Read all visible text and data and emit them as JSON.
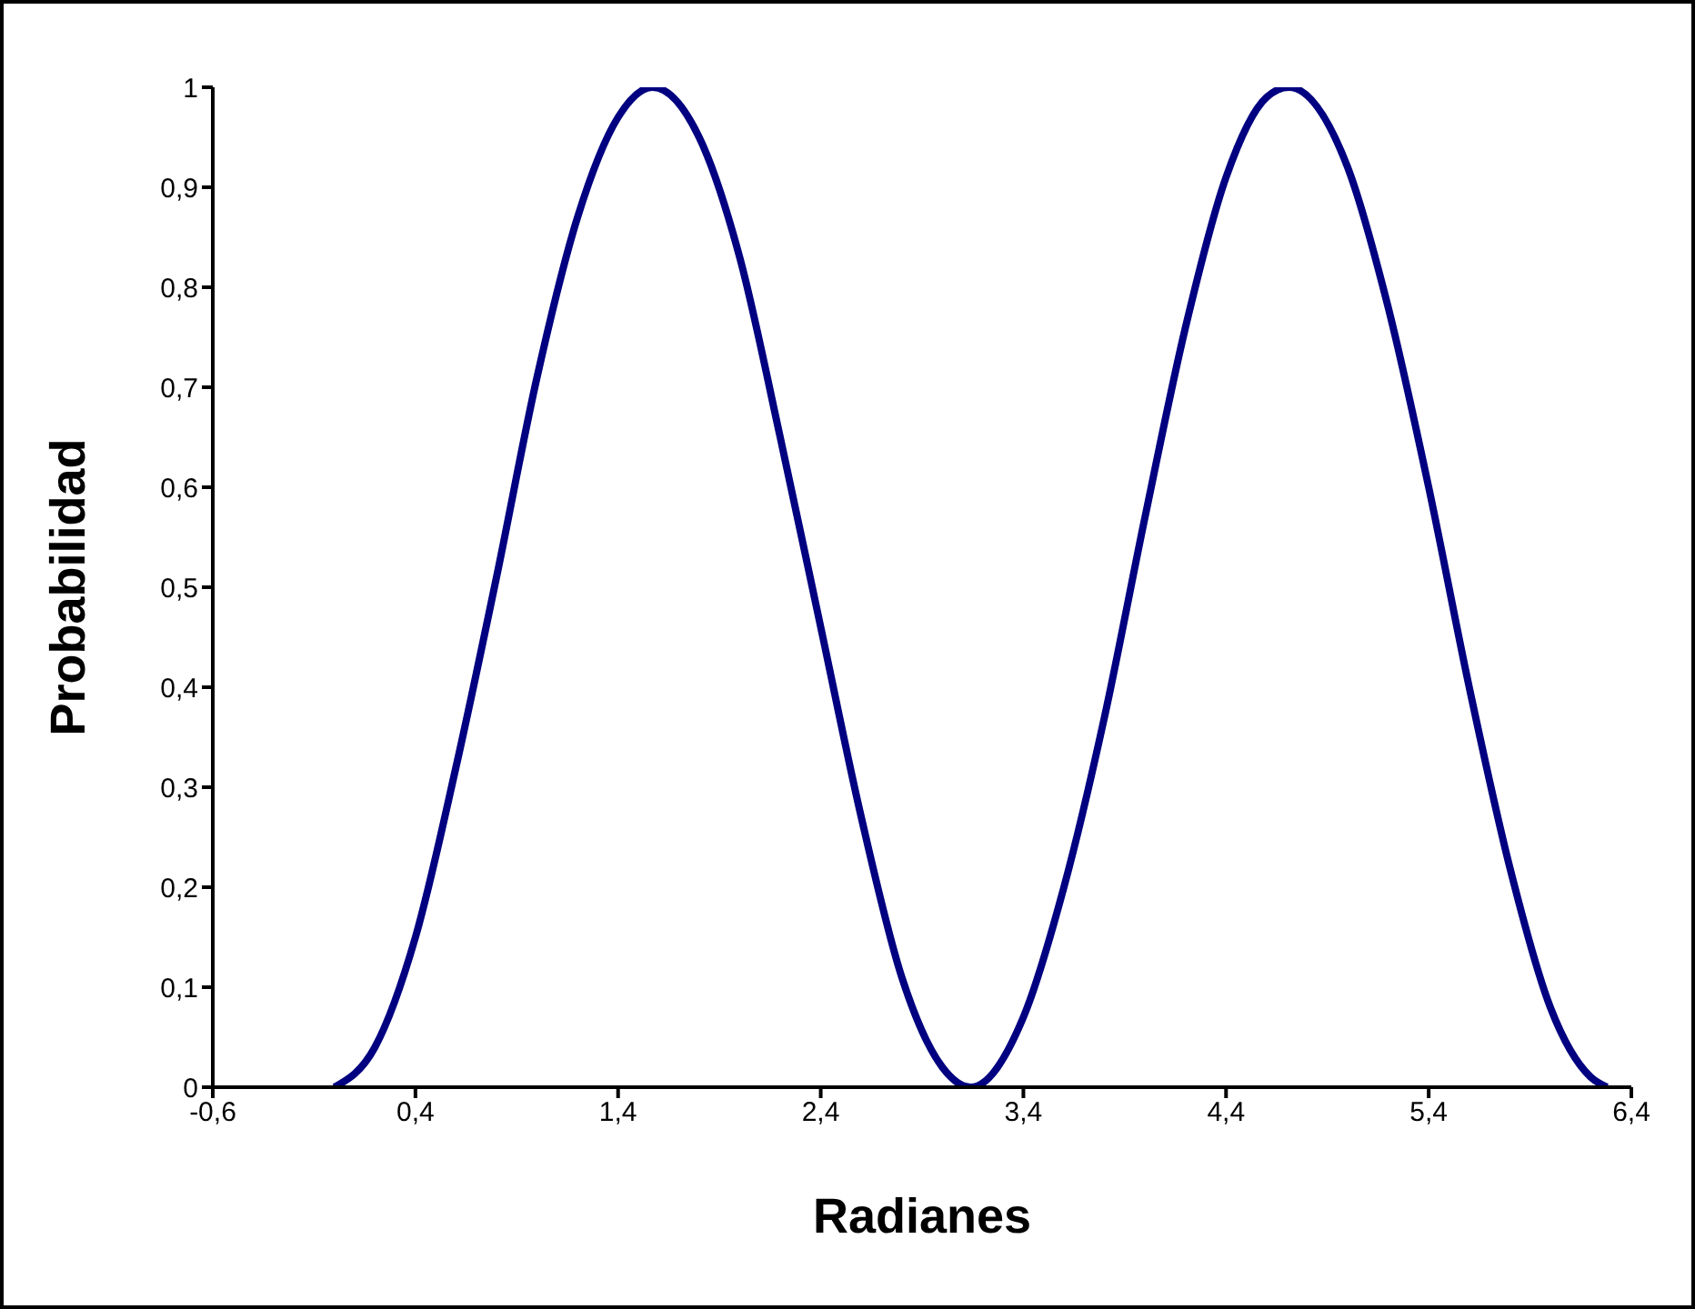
{
  "chart_data": {
    "type": "line",
    "xlabel": "Radianes",
    "ylabel": "Probabilidad",
    "x": [
      0,
      0.2,
      0.4,
      0.6,
      0.8,
      1.0,
      1.2,
      1.4,
      1.57,
      1.8,
      2.0,
      2.2,
      2.4,
      2.6,
      2.8,
      3.0,
      3.14,
      3.4,
      3.6,
      3.8,
      4.0,
      4.2,
      4.4,
      4.6,
      4.71,
      5.0,
      5.2,
      5.4,
      5.6,
      5.8,
      6.0,
      6.2,
      6.28
    ],
    "series": [
      {
        "color": "#000080",
        "values": [
          0,
          0.04,
          0.15,
          0.32,
          0.51,
          0.71,
          0.87,
          0.97,
          1,
          0.95,
          0.83,
          0.65,
          0.46,
          0.27,
          0.11,
          0.02,
          0,
          0.07,
          0.2,
          0.37,
          0.57,
          0.76,
          0.91,
          0.99,
          1,
          0.92,
          0.78,
          0.6,
          0.4,
          0.22,
          0.08,
          0.01,
          0
        ]
      }
    ],
    "xlim": [
      -0.6,
      6.4
    ],
    "xticks": [
      {
        "value": -0.6,
        "label": "-0,6"
      },
      {
        "value": 0.4,
        "label": "0,4"
      },
      {
        "value": 1.4,
        "label": "1,4"
      },
      {
        "value": 2.4,
        "label": "2,4"
      },
      {
        "value": 3.4,
        "label": "3,4"
      },
      {
        "value": 4.4,
        "label": "4,4"
      },
      {
        "value": 5.4,
        "label": "5,4"
      },
      {
        "value": 6.4,
        "label": "6,4"
      }
    ],
    "ylim": [
      0,
      1
    ],
    "yticks": [
      0,
      {
        "value": 0.1,
        "label": "0,1"
      },
      {
        "value": 0.2,
        "label": "0,2"
      },
      {
        "value": 0.3,
        "label": "0,3"
      },
      {
        "value": 0.4,
        "label": "0,4"
      },
      {
        "value": 0.5,
        "label": "0,5"
      },
      {
        "value": 0.6,
        "label": "0,6"
      },
      {
        "value": 0.7,
        "label": "0,7"
      },
      {
        "value": 0.8,
        "label": "0,8"
      },
      {
        "value": 0.9,
        "label": "0,9"
      },
      1
    ],
    "grid": false,
    "legend": false,
    "marker": "none",
    "line_style": "solid"
  }
}
